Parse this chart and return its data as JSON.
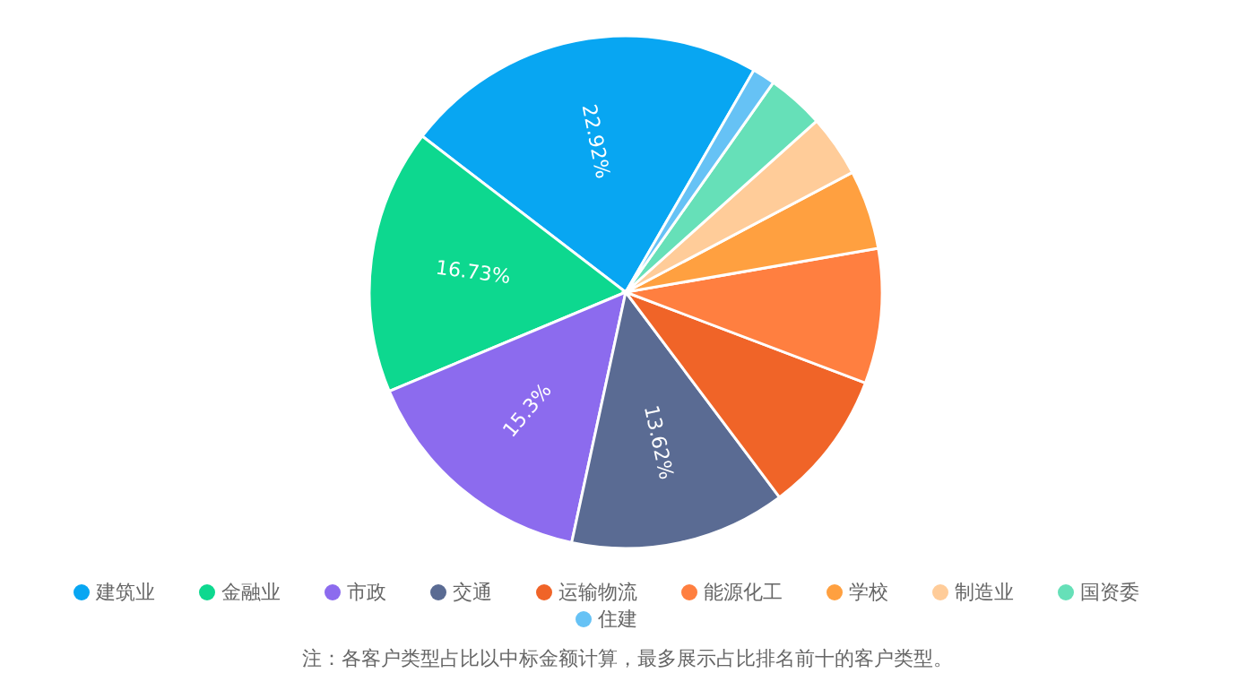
{
  "chart_data": {
    "type": "pie",
    "categories": [
      "建筑业",
      "金融业",
      "市政",
      "交通",
      "运输物流",
      "能源化工",
      "学校",
      "制造业",
      "国资委",
      "住建"
    ],
    "values": [
      22.92,
      16.73,
      15.3,
      13.62,
      9.0,
      8.5,
      5.0,
      3.9,
      3.6,
      1.43
    ],
    "colors": [
      "#08a6f2",
      "#0dd88f",
      "#8c6bee",
      "#5a6b93",
      "#f06428",
      "#ff7f40",
      "#ffa040",
      "#ffcc99",
      "#66e0b8",
      "#66c2f5"
    ],
    "value_labels": [
      "22.92%",
      "16.73%",
      "15.3%",
      "13.62%",
      null,
      null,
      null,
      null,
      null,
      null
    ],
    "legend": "bottom",
    "annotations": [
      "注：各客户类型占比以中标金额计算，最多展示占比排名前十的客户类型。"
    ]
  }
}
